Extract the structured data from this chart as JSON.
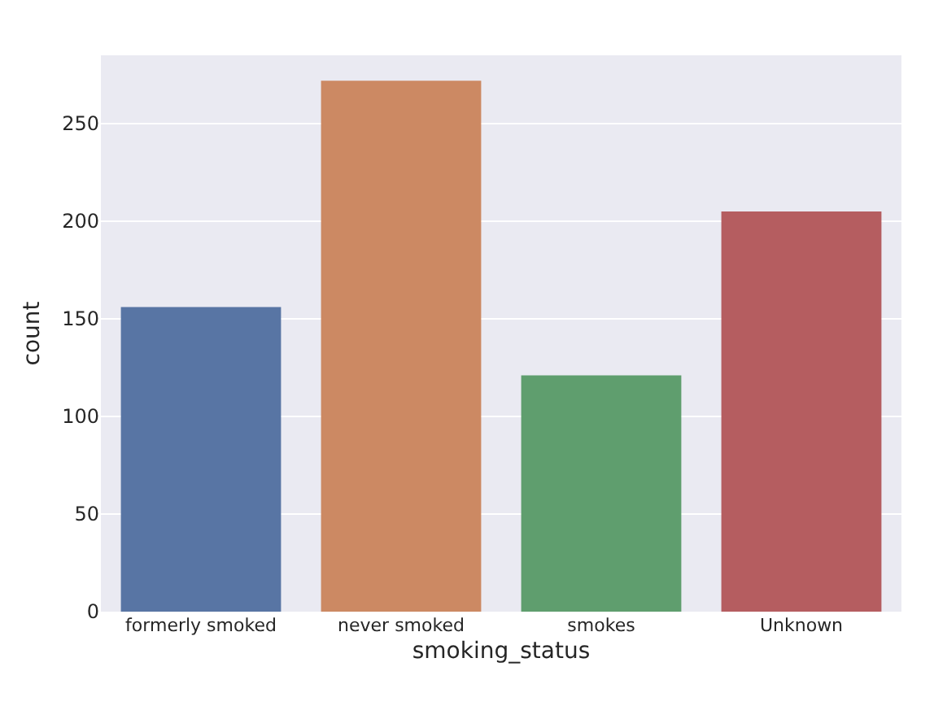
{
  "chart_data": {
    "type": "bar",
    "xlabel": "smoking_status",
    "ylabel": "count",
    "categories": [
      "formerly smoked",
      "never smoked",
      "smokes",
      "Unknown"
    ],
    "values": [
      156,
      272,
      121,
      205
    ],
    "colors": [
      "#5875a4",
      "#cc8963",
      "#5f9e6e",
      "#b55d60"
    ],
    "ylim": [
      0,
      285
    ],
    "yticks": [
      0,
      50,
      100,
      150,
      200,
      250
    ],
    "grid": "y"
  }
}
